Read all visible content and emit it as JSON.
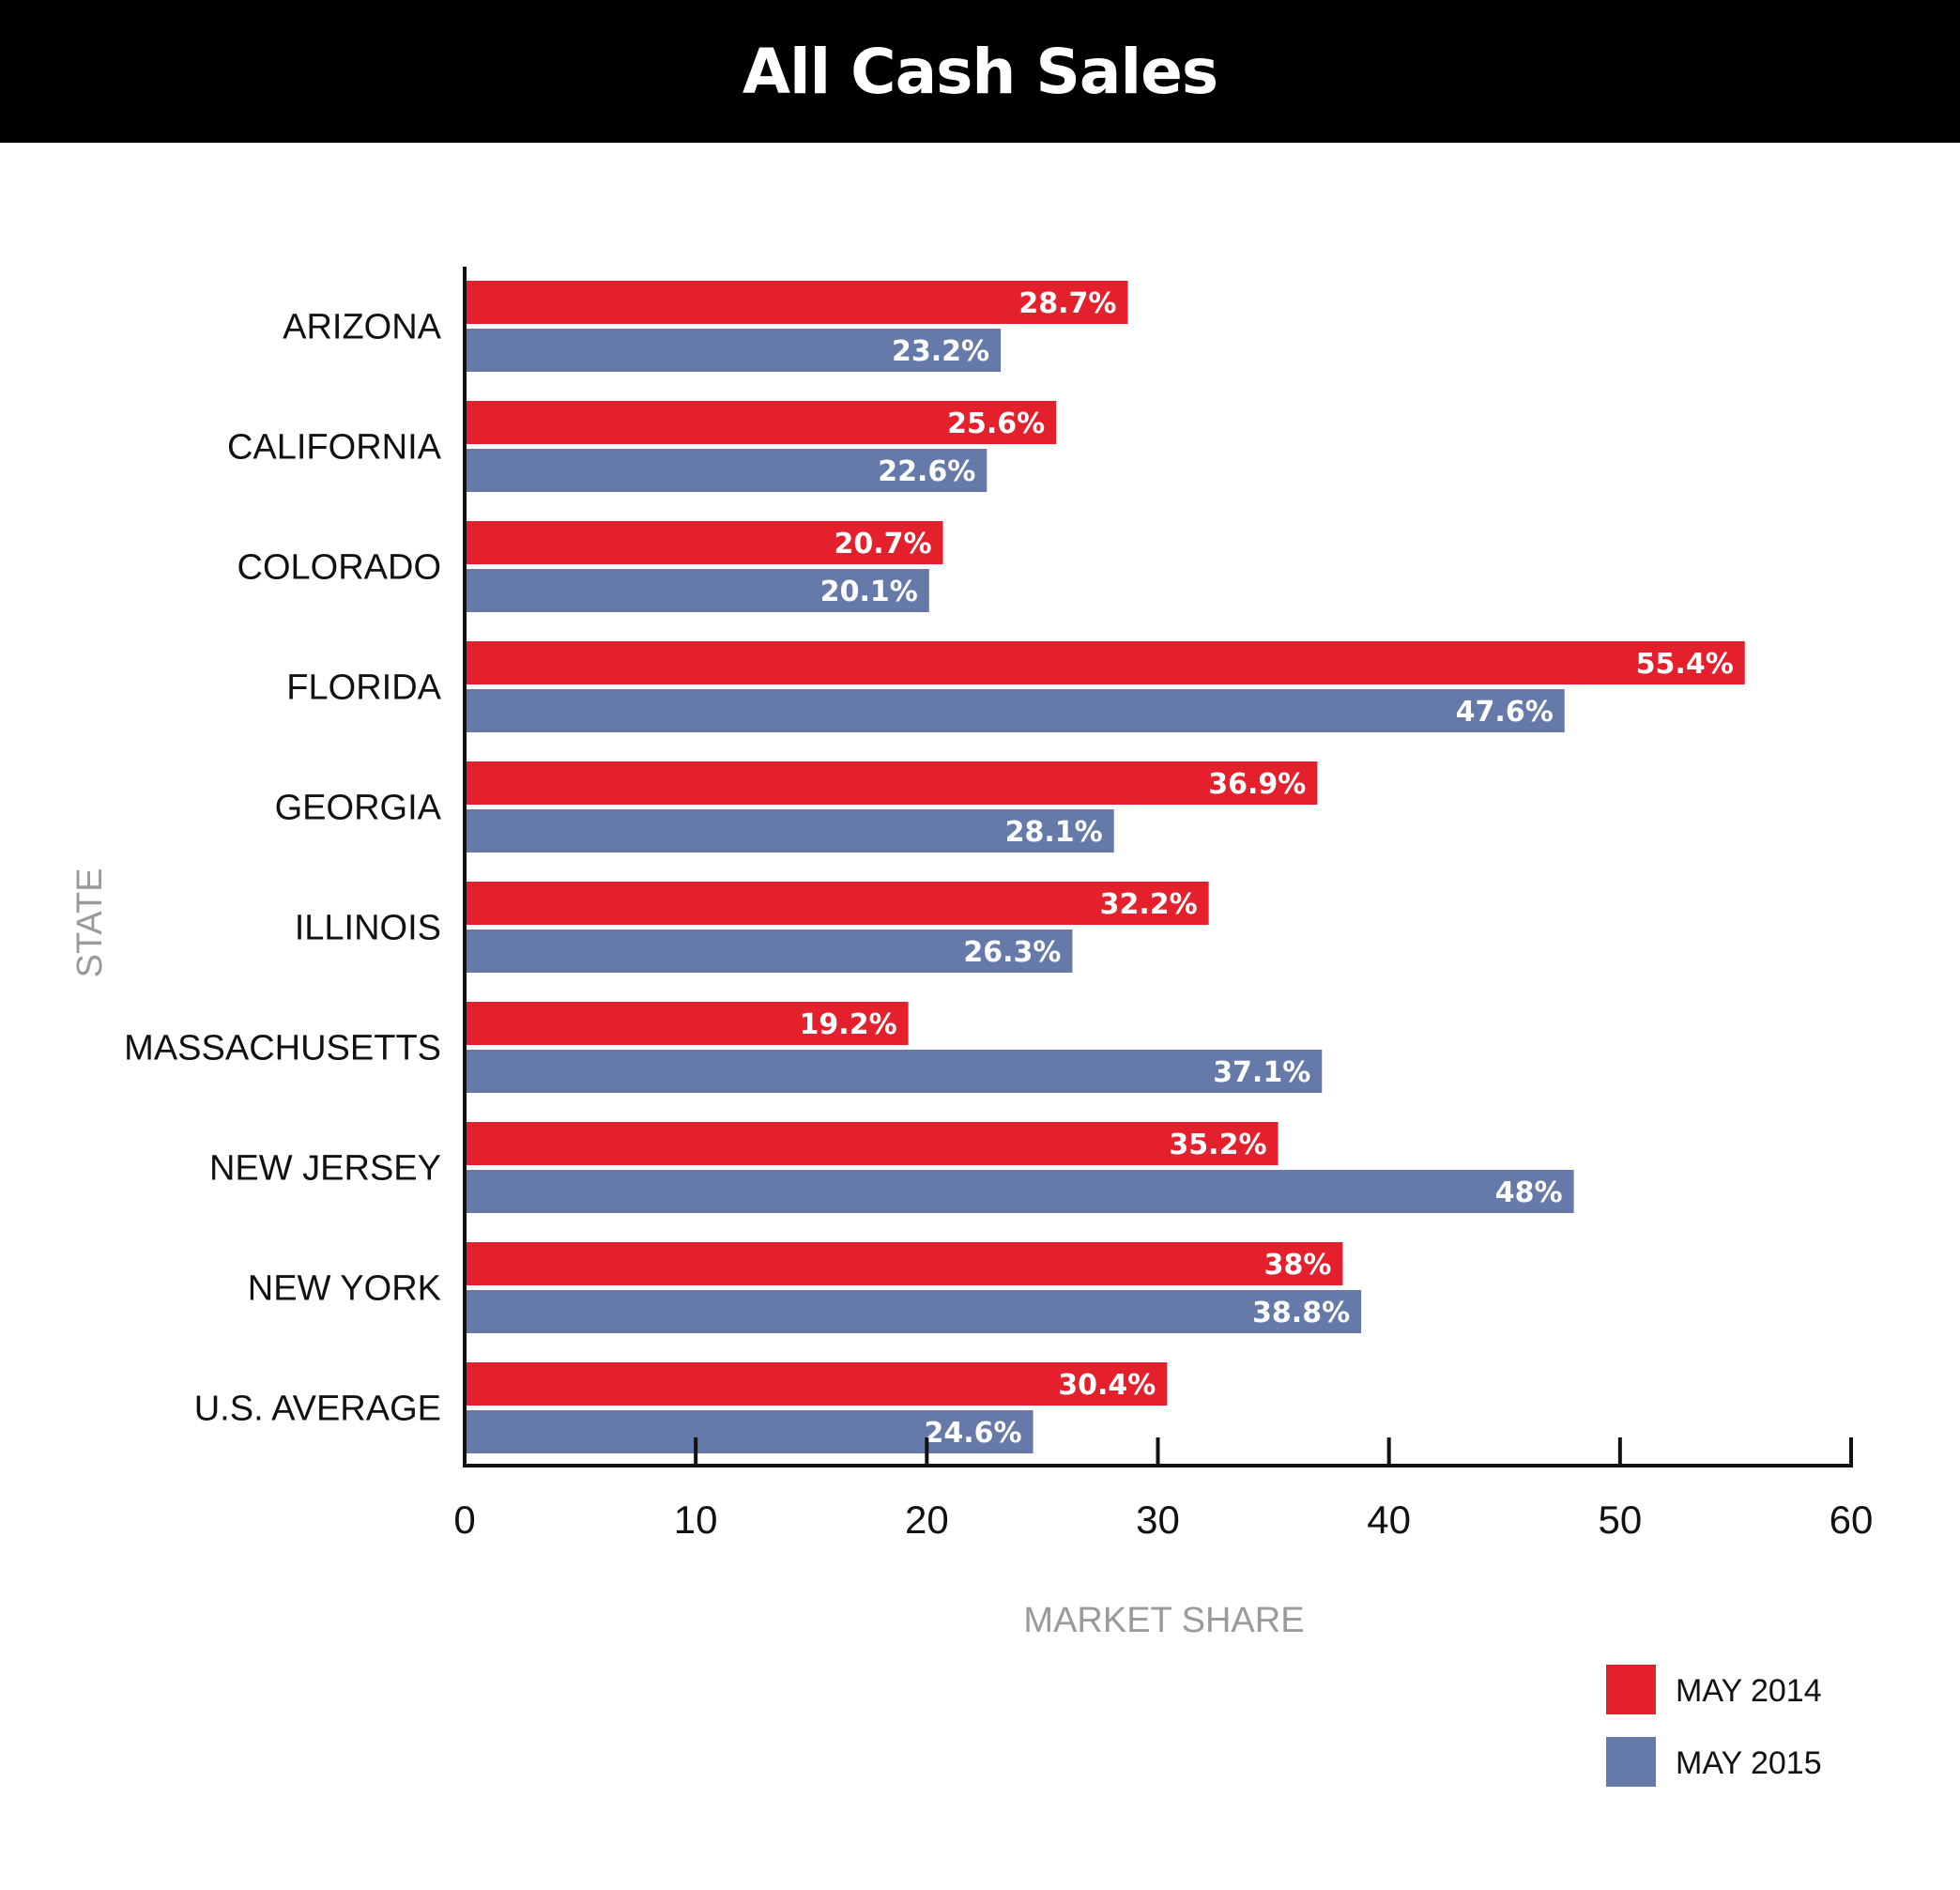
{
  "chart_data": {
    "type": "bar",
    "orientation": "horizontal",
    "title": "All Cash Sales",
    "xlabel": "MARKET SHARE",
    "ylabel": "STATE",
    "xlim": [
      0,
      60
    ],
    "x_ticks": [
      0,
      10,
      20,
      30,
      40,
      50,
      60
    ],
    "grid": false,
    "legend_position": "bottom-right",
    "categories": [
      "ARIZONA",
      "CALIFORNIA",
      "COLORADO",
      "FLORIDA",
      "GEORGIA",
      "ILLINOIS",
      "MASSACHUSETTS",
      "NEW JERSEY",
      "NEW YORK",
      "U.S. AVERAGE"
    ],
    "series": [
      {
        "name": "MAY 2014",
        "color": "#e3202b",
        "values": [
          28.7,
          25.6,
          20.7,
          55.4,
          36.9,
          32.2,
          19.2,
          35.2,
          38,
          30.4
        ],
        "labels": [
          "28.7%",
          "25.6%",
          "20.7%",
          "55.4%",
          "36.9%",
          "32.2%",
          "19.2%",
          "35.2%",
          "38%",
          "30.4%"
        ]
      },
      {
        "name": "MAY 2015",
        "color": "#667aaa",
        "values": [
          23.2,
          22.6,
          20.1,
          47.6,
          28.1,
          26.3,
          37.1,
          48,
          38.8,
          24.6
        ],
        "labels": [
          "23.2%",
          "22.6%",
          "20.1%",
          "47.6%",
          "28.1%",
          "26.3%",
          "37.1%",
          "48%",
          "38.8%",
          "24.6%"
        ]
      }
    ]
  }
}
